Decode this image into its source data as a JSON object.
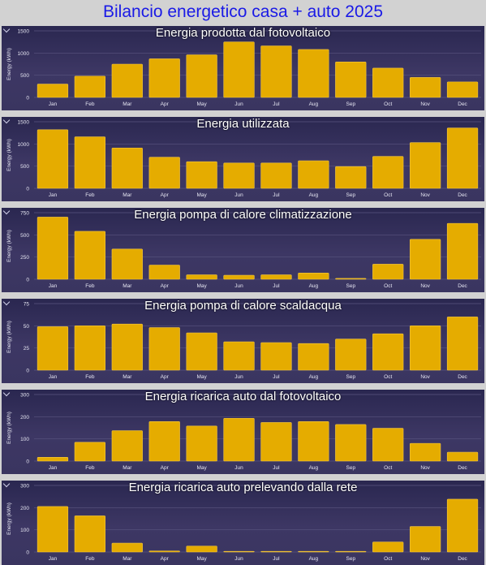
{
  "title": "Bilancio energetico casa + auto 2025",
  "chart_data": [
    {
      "type": "bar",
      "title": "Energia prodotta dal fotovoltaico",
      "ylabel": "Energy (kWh)",
      "categories": [
        "Jan",
        "Feb",
        "Mar",
        "Apr",
        "May",
        "Jun",
        "Jul",
        "Aug",
        "Sep",
        "Oct",
        "Nov",
        "Dec"
      ],
      "values": [
        300,
        480,
        750,
        870,
        960,
        1250,
        1160,
        1080,
        800,
        660,
        450,
        350
      ],
      "ylim": [
        0,
        1500
      ],
      "yticks": [
        0,
        500,
        1000,
        1500
      ]
    },
    {
      "type": "bar",
      "title": "Energia utilizzata",
      "ylabel": "Energy (kWh)",
      "categories": [
        "Jan",
        "Feb",
        "Mar",
        "Apr",
        "May",
        "Jun",
        "Jul",
        "Aug",
        "Sep",
        "Oct",
        "Nov",
        "Dec"
      ],
      "values": [
        1320,
        1160,
        910,
        700,
        600,
        570,
        570,
        620,
        490,
        720,
        1030,
        1360
      ],
      "ylim": [
        0,
        1500
      ],
      "yticks": [
        0,
        500,
        1000,
        1500
      ]
    },
    {
      "type": "bar",
      "title": "Energia pompa di calore climatizzazione",
      "ylabel": "Energy (kWh)",
      "categories": [
        "Jan",
        "Feb",
        "Mar",
        "Apr",
        "May",
        "Jun",
        "Jul",
        "Aug",
        "Sep",
        "Oct",
        "Nov",
        "Dec"
      ],
      "values": [
        700,
        540,
        340,
        160,
        50,
        45,
        50,
        70,
        10,
        170,
        450,
        630
      ],
      "ylim": [
        0,
        750
      ],
      "yticks": [
        0,
        250,
        500,
        750
      ]
    },
    {
      "type": "bar",
      "title": "Energia pompa di calore scaldacqua",
      "ylabel": "Energy (kWh)",
      "categories": [
        "Jan",
        "Feb",
        "Mar",
        "Apr",
        "May",
        "Jun",
        "Jul",
        "Aug",
        "Sep",
        "Oct",
        "Nov",
        "Dec"
      ],
      "values": [
        49,
        50,
        52,
        48,
        42,
        32,
        31,
        30,
        35,
        41,
        50,
        60
      ],
      "ylim": [
        0,
        75
      ],
      "yticks": [
        0,
        25,
        50,
        75
      ]
    },
    {
      "type": "bar",
      "title": "Energia ricarica auto dal fotovoltaico",
      "ylabel": "Energy (kWh)",
      "categories": [
        "Jan",
        "Feb",
        "Mar",
        "Apr",
        "May",
        "Jun",
        "Jul",
        "Aug",
        "Sep",
        "Oct",
        "Nov",
        "Dec"
      ],
      "values": [
        17,
        85,
        137,
        178,
        158,
        193,
        174,
        178,
        165,
        148,
        80,
        40
      ],
      "ylim": [
        0,
        300
      ],
      "yticks": [
        0,
        100,
        200,
        300
      ]
    },
    {
      "type": "bar",
      "title": "Energia ricarica auto prelevando dalla rete",
      "ylabel": "Energy (kWh)",
      "categories": [
        "Jan",
        "Feb",
        "Mar",
        "Apr",
        "May",
        "Jun",
        "Jul",
        "Aug",
        "Sep",
        "Oct",
        "Nov",
        "Dec"
      ],
      "values": [
        205,
        163,
        40,
        5,
        27,
        3,
        3,
        3,
        3,
        45,
        115,
        238
      ],
      "ylim": [
        0,
        300
      ],
      "yticks": [
        0,
        100,
        200,
        300
      ]
    }
  ],
  "colors": {
    "bar": "#e5ac00",
    "bar_edge": "#f5c840",
    "panel": "#2e2b55",
    "title": "#1a1ae6"
  },
  "icons": {
    "corner": "chevron-down-icon"
  }
}
